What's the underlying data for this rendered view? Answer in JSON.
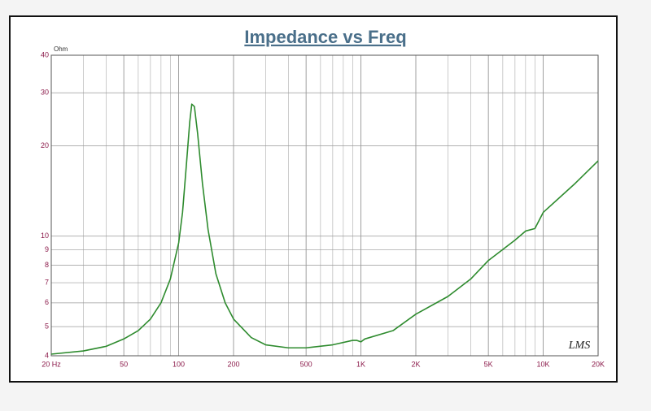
{
  "chart_data": {
    "type": "line",
    "title": "Impedance vs Freq",
    "y_unit": "Ohm",
    "annotation": "LMS",
    "x": [
      20,
      30,
      40,
      50,
      60,
      70,
      80,
      90,
      100,
      105,
      110,
      115,
      118,
      122,
      127,
      135,
      145,
      160,
      180,
      200,
      250,
      300,
      400,
      500,
      700,
      900,
      950,
      1000,
      1050,
      1500,
      2000,
      3000,
      4000,
      5000,
      7000,
      8000,
      9000,
      10000,
      15000,
      20000
    ],
    "values": [
      4.05,
      4.15,
      4.3,
      4.55,
      4.85,
      5.3,
      6.0,
      7.2,
      9.5,
      12,
      17,
      24,
      27.5,
      27,
      22,
      15,
      10.5,
      7.5,
      6.0,
      5.3,
      4.6,
      4.35,
      4.25,
      4.25,
      4.35,
      4.5,
      4.5,
      4.45,
      4.55,
      4.85,
      5.5,
      6.3,
      7.2,
      8.3,
      9.7,
      10.4,
      10.6,
      12,
      15,
      17.8
    ],
    "color": "#2e8b2e",
    "xlim": [
      20,
      20000
    ],
    "ylim": [
      4,
      40
    ],
    "log_x": true,
    "log_y": true,
    "grid": true,
    "xticks": [
      {
        "value": 20,
        "label": "20 Hz"
      },
      50,
      100,
      200,
      500,
      {
        "value": 1000,
        "label": "1K"
      },
      {
        "value": 2000,
        "label": "2K"
      },
      {
        "value": 5000,
        "label": "5K"
      },
      {
        "value": 10000,
        "label": "10K"
      },
      {
        "value": 20000,
        "label": "20K"
      }
    ],
    "xgrid": [
      30,
      40,
      60,
      70,
      80,
      90,
      300,
      400,
      600,
      700,
      800,
      900,
      3000,
      4000,
      6000,
      7000,
      8000,
      9000
    ],
    "yticks": [
      4,
      5,
      6,
      7,
      8,
      9,
      10,
      20,
      30,
      40
    ]
  }
}
